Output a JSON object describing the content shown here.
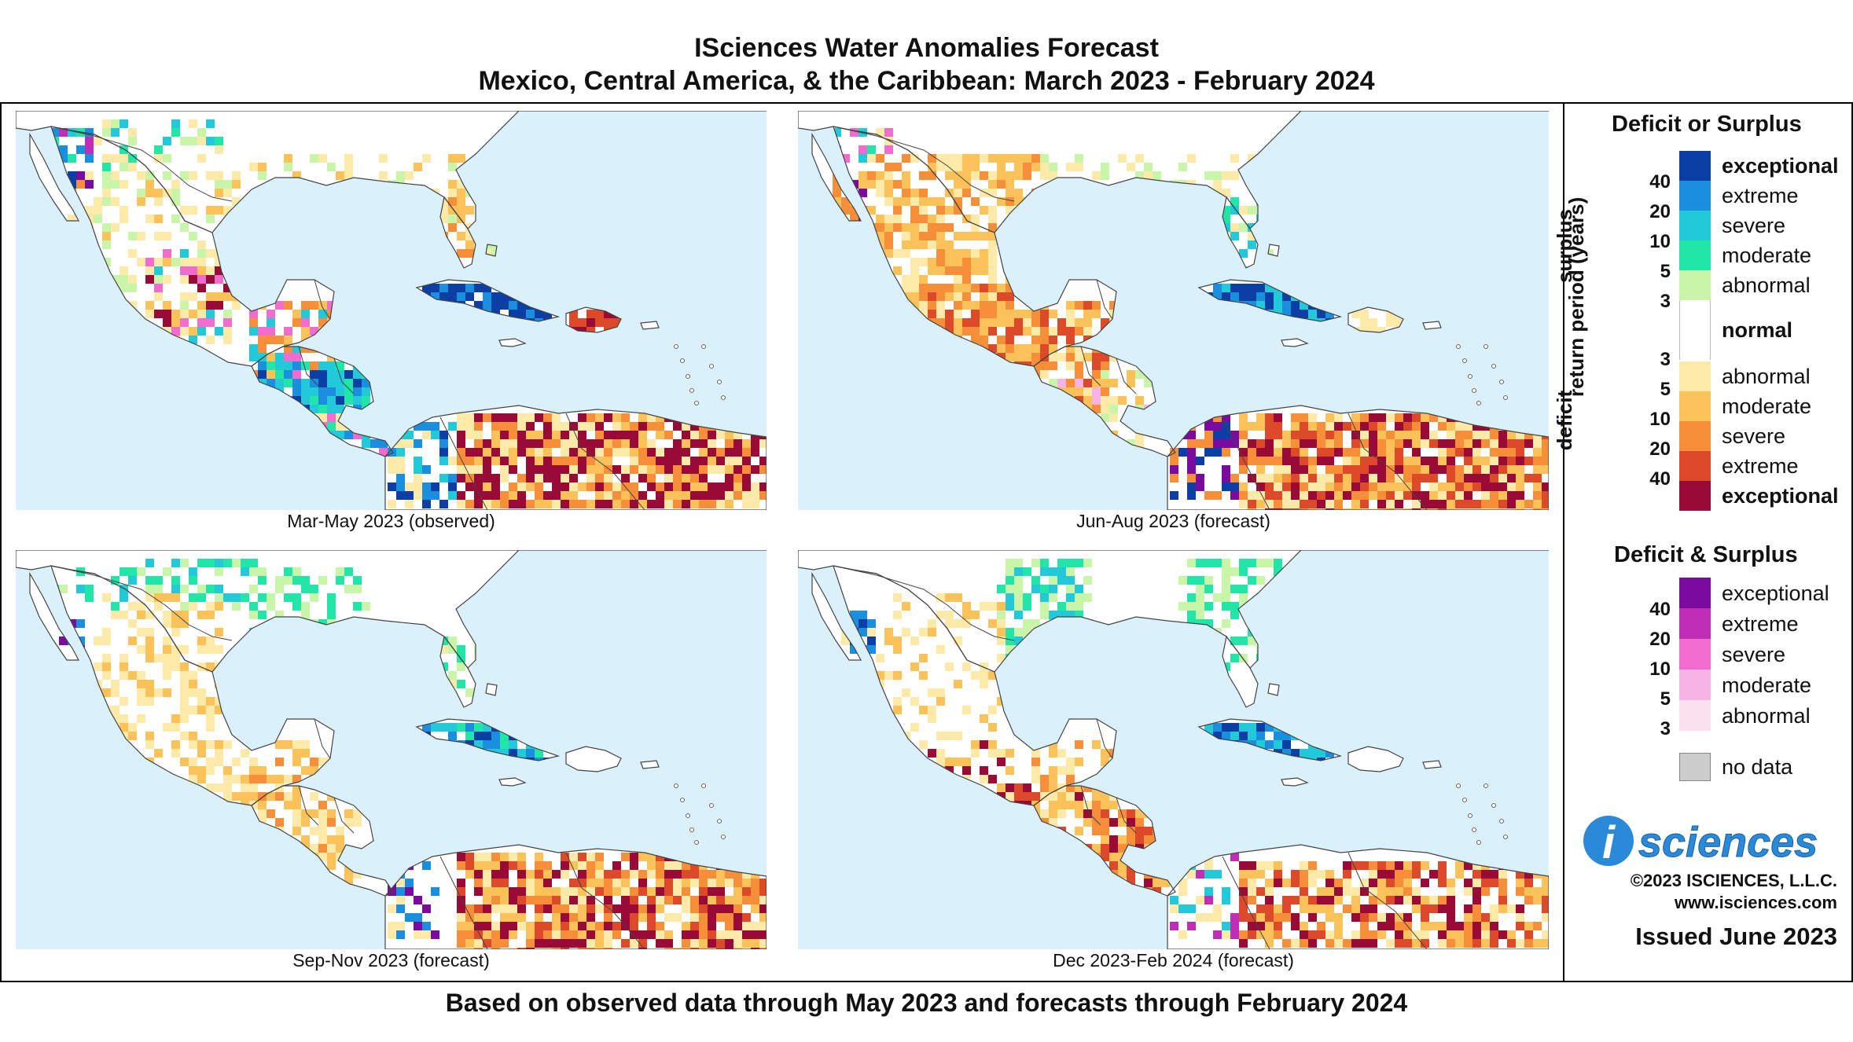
{
  "header": {
    "title_line1": "ISciences Water Anomalies Forecast",
    "title_line2": "Mexico, Central America, & the Caribbean: March 2023 - February 2024"
  },
  "panels": [
    {
      "caption": "Mar-May 2023 (observed)",
      "dominant": "mixed"
    },
    {
      "caption": "Jun-Aug 2023 (forecast)",
      "dominant": "deficit"
    },
    {
      "caption": "Sep-Nov 2023 (forecast)",
      "dominant": "mild-deficit"
    },
    {
      "caption": "Dec 2023-Feb 2024 (forecast)",
      "dominant": "deficit-south"
    }
  ],
  "legend": {
    "heading_1": "Deficit or Surplus",
    "surplus_label": "surplus",
    "deficit_label": "deficit",
    "return_period_label": "return period (years)",
    "surplus_items": [
      {
        "label": "exceptional",
        "color": "#0b3fa5",
        "bold": true
      },
      {
        "label": "extreme",
        "color": "#1a8fe0",
        "bold": false
      },
      {
        "label": "severe",
        "color": "#22c9d8",
        "bold": false
      },
      {
        "label": "moderate",
        "color": "#22e6a8",
        "bold": false
      },
      {
        "label": "abnormal",
        "color": "#c8f5a8",
        "bold": false
      }
    ],
    "normal": {
      "label": "normal",
      "color": "#ffffff"
    },
    "deficit_items": [
      {
        "label": "abnormal",
        "color": "#fde9a8",
        "bold": false
      },
      {
        "label": "moderate",
        "color": "#fbc25a",
        "bold": false
      },
      {
        "label": "severe",
        "color": "#f78e3a",
        "bold": false
      },
      {
        "label": "extreme",
        "color": "#dc4a2a",
        "bold": false
      },
      {
        "label": "exceptional",
        "color": "#9a0a36",
        "bold": true
      }
    ],
    "rp_surplus": [
      "40",
      "20",
      "10",
      "5",
      "3"
    ],
    "rp_deficit": [
      "3",
      "5",
      "10",
      "20",
      "40"
    ],
    "heading_2": "Deficit & Surplus",
    "both_items": [
      {
        "label": "exceptional",
        "color": "#7b0b9e"
      },
      {
        "label": "extreme",
        "color": "#c02eb8"
      },
      {
        "label": "severe",
        "color": "#f06ccf"
      },
      {
        "label": "moderate",
        "color": "#f8b3e6"
      },
      {
        "label": "abnormal",
        "color": "#fbe0ef"
      }
    ],
    "rp_both": [
      "40",
      "20",
      "10",
      "5",
      "3"
    ],
    "no_data": {
      "label": "no data",
      "color": "#cccccc"
    }
  },
  "branding": {
    "logo_i": "i",
    "logo_text": "sciences",
    "copyright": "©2023 ISCIENCES, L.L.C.",
    "website": "www.isciences.com",
    "issued": "Issued June 2023"
  },
  "footer": {
    "text": "Based on observed data through May 2023 and forecasts through February 2024"
  },
  "colors": {
    "ocean": "#daf0fa",
    "land": "#ffffff",
    "border": "#444444",
    "logo_blue": "#2a8ad8"
  }
}
